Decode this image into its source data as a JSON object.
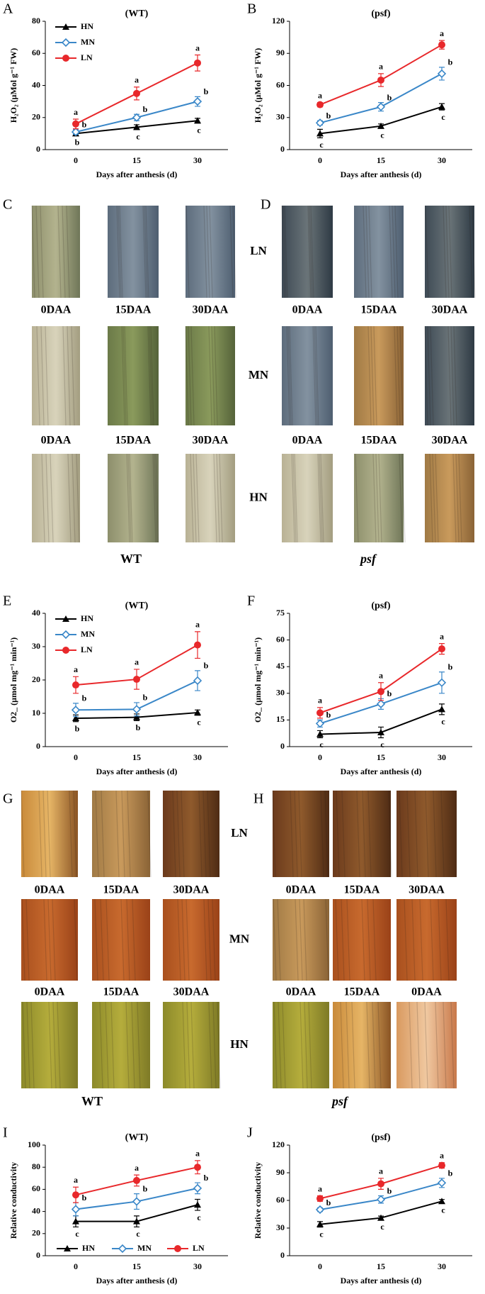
{
  "chart_data": [
    {
      "type": "line",
      "panel": "A",
      "title": "(WT)",
      "y_label": "H₂O₂ (μMol g⁻¹ FW)",
      "x_label": "Days after anthesis (d)",
      "categories": [
        "0",
        "15",
        "30"
      ],
      "ylim": [
        0,
        80
      ],
      "yticks": [
        0,
        20,
        40,
        60,
        80
      ],
      "legend": "upper left",
      "series": [
        {
          "name": "HN",
          "color": "#000000",
          "marker": "triangle",
          "values": [
            10,
            14,
            18
          ],
          "errors": [
            1,
            1.5,
            1.5
          ],
          "labels": [
            "b",
            "c",
            "c"
          ]
        },
        {
          "name": "MN",
          "color": "#3a87c8",
          "marker": "diamond",
          "values": [
            11,
            20,
            30
          ],
          "errors": [
            1.5,
            2,
            3
          ],
          "labels": [
            "b",
            "b",
            "b"
          ]
        },
        {
          "name": "LN",
          "color": "#e8282b",
          "marker": "circle",
          "values": [
            16,
            35,
            54
          ],
          "errors": [
            3,
            4,
            5
          ],
          "labels": [
            "a",
            "a",
            "a"
          ]
        }
      ]
    },
    {
      "type": "line",
      "panel": "B",
      "title": "(psf)",
      "y_label": "H₂O₂ (μMol g⁻¹ FW)",
      "x_label": "Days after anthesis (d)",
      "categories": [
        "0",
        "15",
        "30"
      ],
      "ylim": [
        0,
        120
      ],
      "yticks": [
        0,
        30,
        60,
        90,
        120
      ],
      "series": [
        {
          "color": "#000000",
          "marker": "triangle",
          "values": [
            15,
            22,
            40
          ],
          "errors": [
            4,
            2,
            3
          ],
          "labels": [
            "c",
            "c",
            "c"
          ]
        },
        {
          "color": "#3a87c8",
          "marker": "diamond",
          "values": [
            25,
            40,
            71
          ],
          "errors": [
            2,
            4,
            6
          ],
          "labels": [
            "b",
            "b",
            "b"
          ]
        },
        {
          "color": "#e8282b",
          "marker": "circle",
          "values": [
            42,
            65,
            98
          ],
          "errors": [
            2,
            6,
            4
          ],
          "labels": [
            "a",
            "a",
            "a"
          ]
        }
      ]
    },
    {
      "type": "line",
      "panel": "E",
      "title": "(WT)",
      "y_label": "O2_ (μmol mg⁻¹ min⁻¹)",
      "x_label": "Days after anthesis (d)",
      "categories": [
        "0",
        "15",
        "30"
      ],
      "ylim": [
        0,
        40
      ],
      "yticks": [
        0,
        10,
        20,
        30,
        40
      ],
      "legend": "upper left",
      "series": [
        {
          "name": "HN",
          "color": "#000000",
          "marker": "triangle",
          "values": [
            8.5,
            8.8,
            10.2
          ],
          "errors": [
            1,
            1,
            0.8
          ],
          "labels": [
            "b",
            "b",
            "c"
          ]
        },
        {
          "name": "MN",
          "color": "#3a87c8",
          "marker": "diamond",
          "values": [
            11,
            11.2,
            19.8
          ],
          "errors": [
            2,
            2,
            3
          ],
          "labels": [
            "b",
            "b",
            "b"
          ]
        },
        {
          "name": "LN",
          "color": "#e8282b",
          "marker": "circle",
          "values": [
            18.5,
            20.2,
            30.5
          ],
          "errors": [
            2.5,
            3,
            4
          ],
          "labels": [
            "a",
            "a",
            "a"
          ]
        }
      ]
    },
    {
      "type": "line",
      "panel": "F",
      "title": "(psf)",
      "y_label": "O2_ (μmol mg⁻¹ min⁻¹)",
      "x_label": "Days after anthesis (d)",
      "categories": [
        "0",
        "15",
        "30"
      ],
      "ylim": [
        0,
        75
      ],
      "yticks": [
        0,
        15,
        30,
        45,
        60,
        75
      ],
      "series": [
        {
          "color": "#000000",
          "marker": "triangle",
          "values": [
            7,
            8,
            21
          ],
          "errors": [
            2,
            3,
            3
          ],
          "labels": [
            "c",
            "c",
            "c"
          ]
        },
        {
          "color": "#3a87c8",
          "marker": "diamond",
          "values": [
            13,
            24,
            36
          ],
          "errors": [
            2,
            3,
            6
          ],
          "labels": [
            "b",
            "b",
            "b"
          ]
        },
        {
          "color": "#e8282b",
          "marker": "circle",
          "values": [
            19,
            31,
            55
          ],
          "errors": [
            3,
            5,
            3
          ],
          "labels": [
            "a",
            "a",
            "a"
          ]
        }
      ]
    },
    {
      "type": "line",
      "panel": "I",
      "title": "(WT)",
      "y_label": "Relative conductivity",
      "x_label": "Days after anthesis (d)",
      "categories": [
        "0",
        "15",
        "30"
      ],
      "ylim": [
        0,
        100
      ],
      "yticks": [
        0,
        20,
        40,
        60,
        80,
        100
      ],
      "legend": "lower center",
      "series": [
        {
          "name": "HN",
          "color": "#000000",
          "marker": "triangle",
          "values": [
            31,
            31,
            46
          ],
          "errors": [
            5,
            5,
            5
          ],
          "labels": [
            "c",
            "c",
            "c"
          ]
        },
        {
          "name": "MN",
          "color": "#3a87c8",
          "marker": "diamond",
          "values": [
            42,
            49,
            61
          ],
          "errors": [
            6,
            7,
            5
          ],
          "labels": [
            "b",
            "b",
            "b"
          ]
        },
        {
          "name": "LN",
          "color": "#e8282b",
          "marker": "circle",
          "values": [
            55,
            68,
            80
          ],
          "errors": [
            7,
            5,
            6
          ],
          "labels": [
            "a",
            "a",
            "a"
          ]
        }
      ]
    },
    {
      "type": "line",
      "panel": "J",
      "title": "(psf)",
      "y_label": "Relative conductivity",
      "x_label": "Days after anthesis (d)",
      "categories": [
        "0",
        "15",
        "30"
      ],
      "ylim": [
        0,
        120
      ],
      "yticks": [
        0,
        30,
        60,
        90,
        120
      ],
      "series": [
        {
          "color": "#000000",
          "marker": "triangle",
          "values": [
            34,
            41,
            59
          ],
          "errors": [
            3,
            2,
            2
          ],
          "labels": [
            "c",
            "c",
            "c"
          ]
        },
        {
          "color": "#3a87c8",
          "marker": "diamond",
          "values": [
            50,
            61,
            79
          ],
          "errors": [
            2,
            4,
            5
          ],
          "labels": [
            "b",
            "b",
            "b"
          ]
        },
        {
          "color": "#e8282b",
          "marker": "circle",
          "values": [
            62,
            78,
            98
          ],
          "errors": [
            3,
            6,
            3
          ],
          "labels": [
            "a",
            "a",
            "a"
          ]
        }
      ]
    }
  ],
  "photo_groups": [
    {
      "row_labels": [
        "LN",
        "MN",
        "HN"
      ],
      "panels": [
        {
          "panel": "C",
          "captions": [
            [
              "0DAA",
              "15DAA",
              "30DAA"
            ],
            [
              "0DAA",
              "15DAA",
              "30DAA"
            ]
          ],
          "footer": "WT"
        },
        {
          "panel": "D",
          "captions": [
            [
              "0DAA",
              "15DAA",
              "30DAA"
            ],
            [
              "0DAA",
              "15DAA",
              "30DAA"
            ]
          ],
          "footer": "psf"
        }
      ]
    },
    {
      "row_labels": [
        "LN",
        "MN",
        "HN"
      ],
      "panels": [
        {
          "panel": "G",
          "captions": [
            [
              "0DAA",
              "15DAA",
              "30DAA"
            ],
            [
              "0DAA",
              "15DAA",
              "30DAA"
            ]
          ],
          "footer": "WT"
        },
        {
          "panel": "H",
          "captions": [
            [
              "0DAA",
              "15DAA",
              "30DAA"
            ],
            [
              "0DAA",
              "15DAA",
              "0DAA"
            ]
          ],
          "footer": "psf"
        }
      ]
    }
  ]
}
